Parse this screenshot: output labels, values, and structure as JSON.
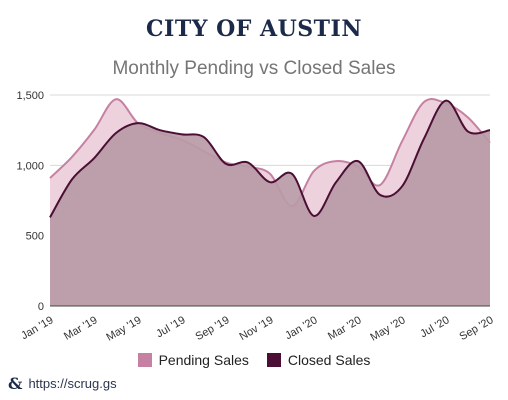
{
  "header": {
    "title": "CITY OF AUSTIN",
    "subtitle": "Monthly Pending vs Closed Sales"
  },
  "footer": {
    "icon": "ampersand-logo-icon",
    "url": "https://scrug.gs"
  },
  "colors": {
    "pending_fill": "#edd2dd",
    "pending_line": "#c681a2",
    "closed_fill": "#b89aa6",
    "closed_line": "#4b0f35",
    "grid": "#d8d8d8",
    "axis": "#444444"
  },
  "chart_data": {
    "type": "area",
    "title": "Monthly Pending vs Closed Sales",
    "xlabel": "",
    "ylabel": "",
    "ylim": [
      0,
      1500
    ],
    "yticks": [
      0,
      500,
      1000,
      1500
    ],
    "ytick_labels": [
      "0",
      "500",
      "1,000",
      "1,500"
    ],
    "grid": true,
    "legend_position": "bottom",
    "categories": [
      "Jan '19",
      "Feb '19",
      "Mar '19",
      "Apr '19",
      "May '19",
      "Jun '19",
      "Jul '19",
      "Aug '19",
      "Sep '19",
      "Oct '19",
      "Nov '19",
      "Dec '19",
      "Jan '20",
      "Feb '20",
      "Mar '20",
      "Apr '20",
      "May '20",
      "Jun '20",
      "Jul '20",
      "Aug '20",
      "Sep '20"
    ],
    "xtick_labels": [
      "Jan '19",
      "Mar '19",
      "May '19",
      "Jul '19",
      "Sep '19",
      "Nov '19",
      "Jan '20",
      "Mar '20",
      "May '20",
      "Jul '20",
      "Sep '20"
    ],
    "series": [
      {
        "name": "Pending Sales",
        "values": [
          910,
          1060,
          1250,
          1470,
          1300,
          1230,
          1180,
          1100,
          1020,
          990,
          940,
          710,
          960,
          1030,
          990,
          860,
          1170,
          1450,
          1440,
          1340,
          1160
        ]
      },
      {
        "name": "Closed Sales",
        "values": [
          630,
          900,
          1050,
          1230,
          1300,
          1250,
          1220,
          1200,
          1010,
          1020,
          880,
          940,
          640,
          880,
          1030,
          790,
          850,
          1190,
          1460,
          1240,
          1250
        ]
      }
    ]
  }
}
